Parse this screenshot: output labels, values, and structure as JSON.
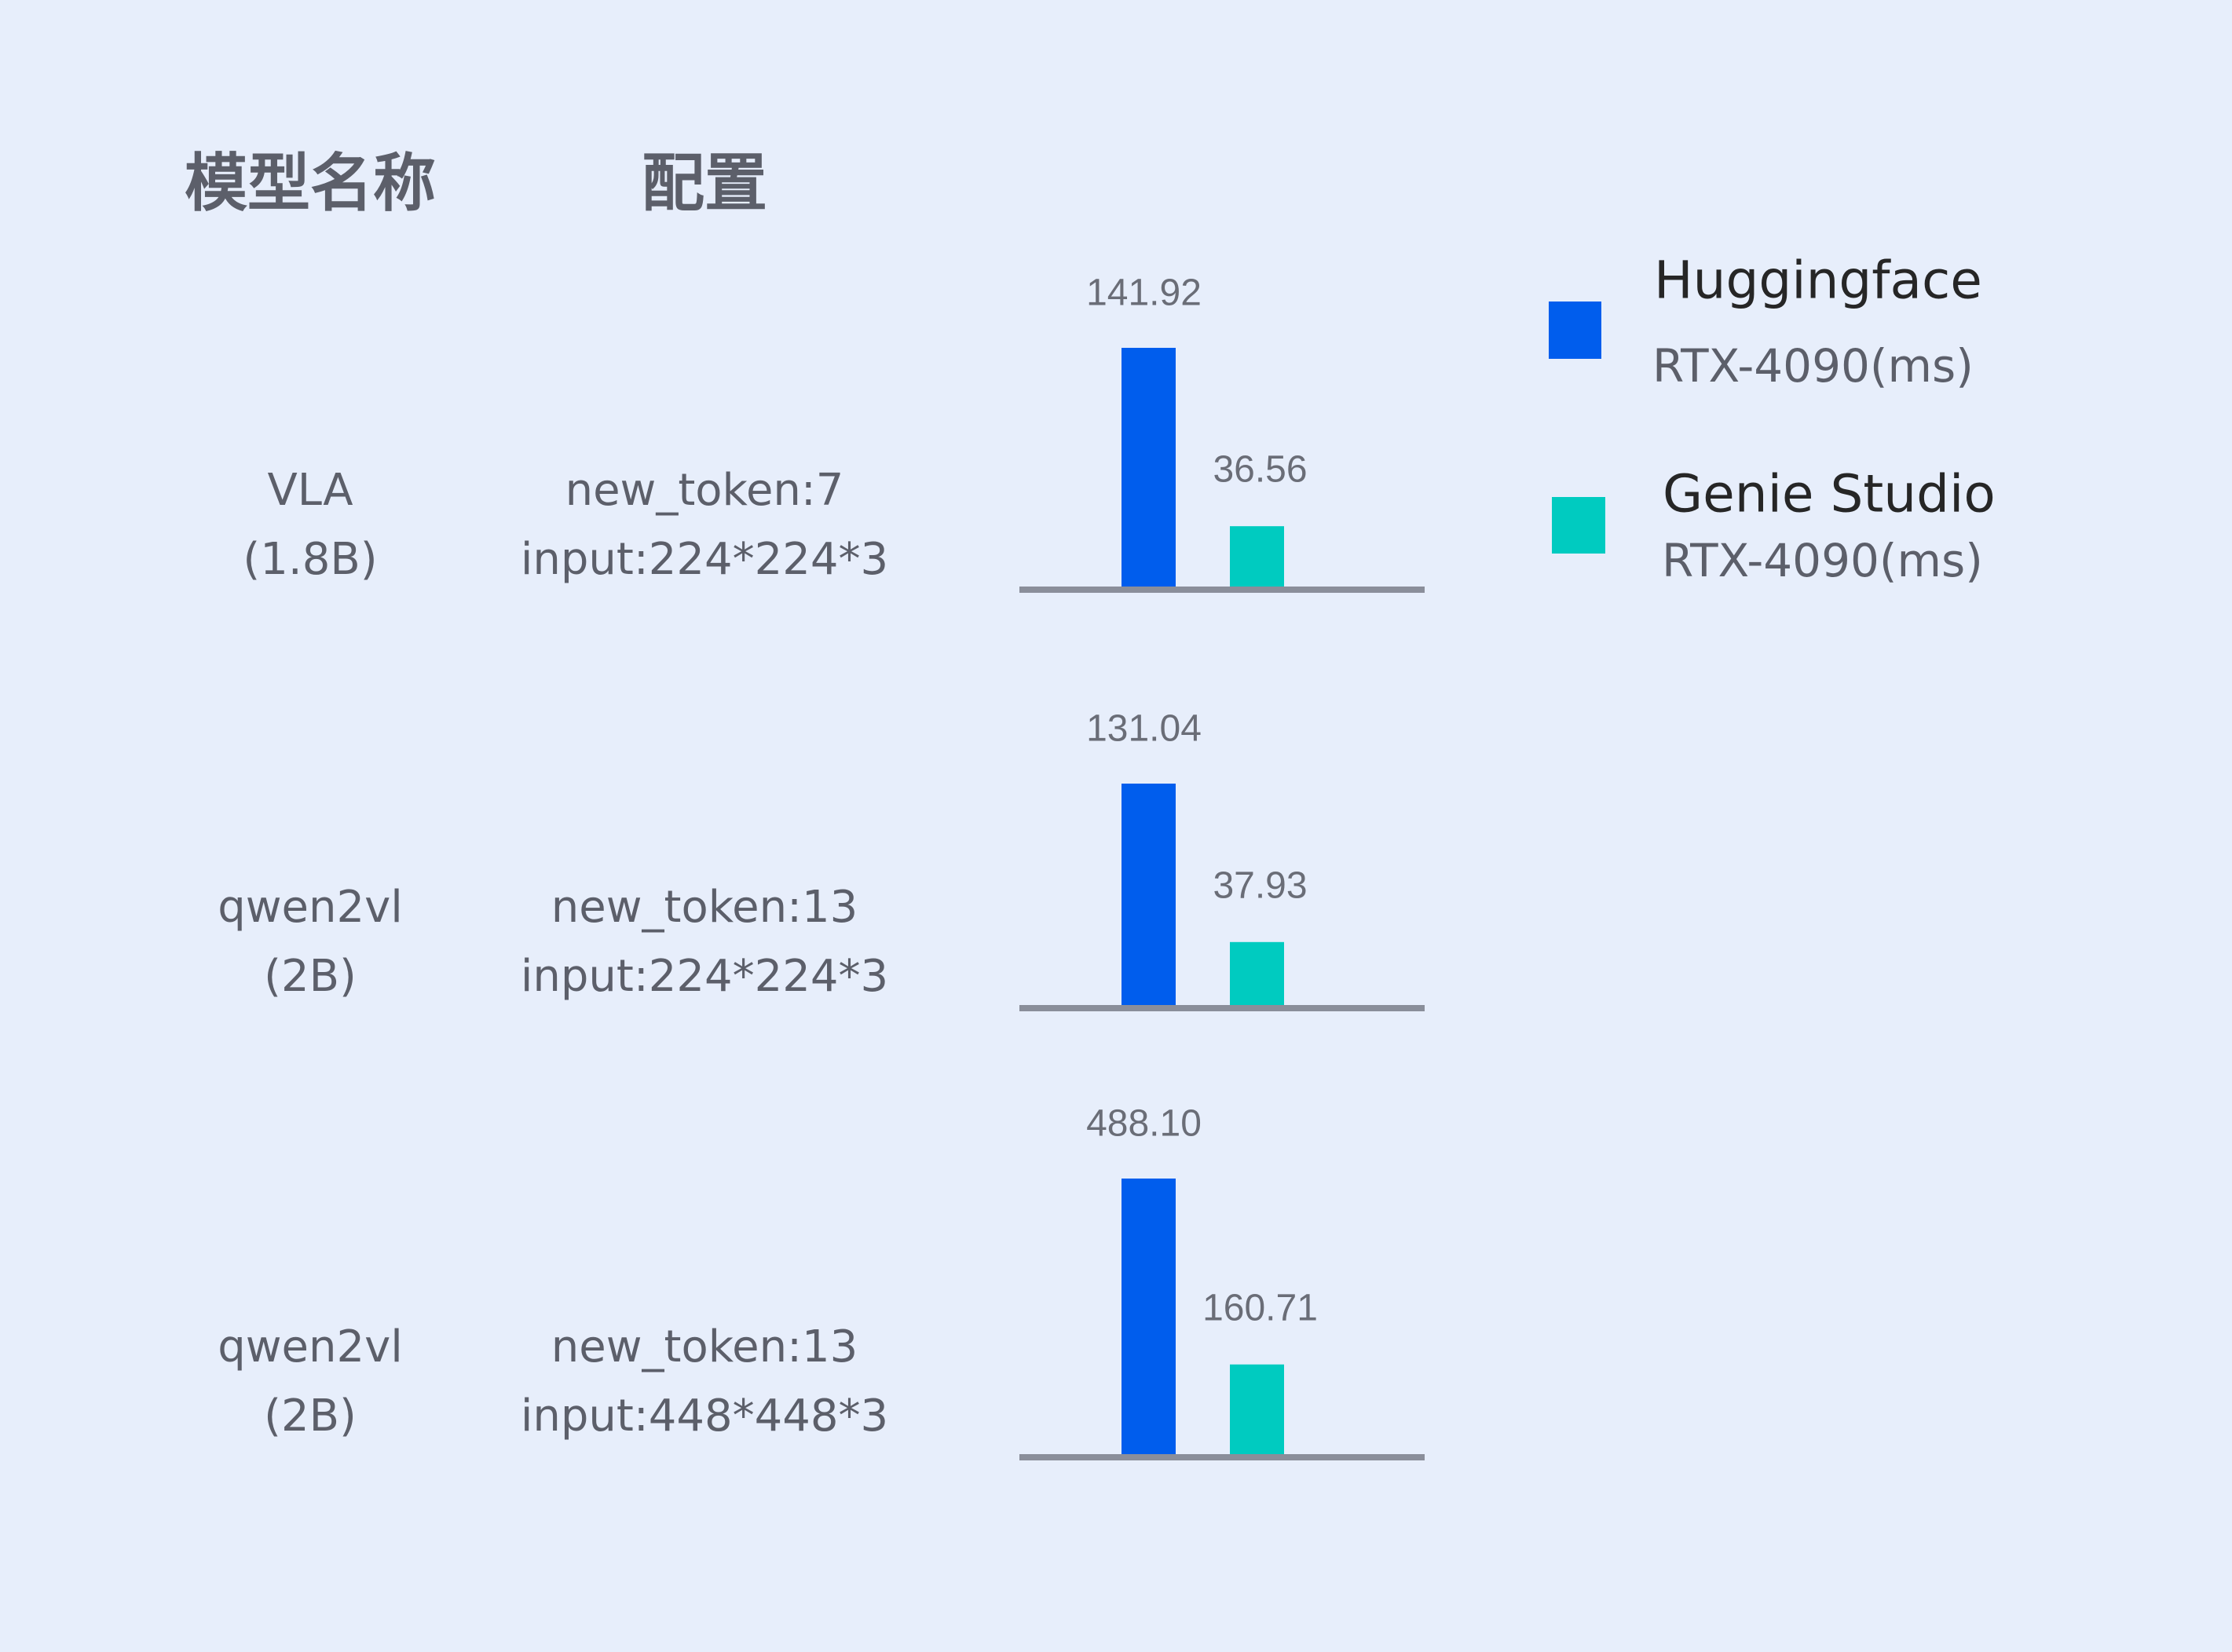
{
  "headers": {
    "model_name": "模型名称",
    "config": "配置"
  },
  "colors": {
    "background": "#e7eefb",
    "huggingface": "#005ded",
    "genie_studio": "#00cbc0",
    "axis": "#8a8e9a",
    "text": "#5c5f6a"
  },
  "legend": [
    {
      "title": "Huggingface",
      "subtitle": "RTX-4090(ms)",
      "color": "#005ded"
    },
    {
      "title": "Genie Studio",
      "subtitle": "RTX-4090(ms)",
      "color": "#00cbc0"
    }
  ],
  "rows": [
    {
      "model": "VLA",
      "size": "(1.8B)",
      "config_line1": "new_token:7",
      "config_line2": "input:224*224*3"
    },
    {
      "model": "qwen2vl",
      "size": "(2B)",
      "config_line1": "new_token:13",
      "config_line2": "input:224*224*3"
    },
    {
      "model": "qwen2vl",
      "size": "(2B)",
      "config_line1": "new_token:13",
      "config_line2": "input:448*448*3"
    }
  ],
  "chart_data": {
    "type": "bar",
    "categories": [
      "VLA (1.8B) new_token:7 input:224*224*3",
      "qwen2vl (2B) new_token:13 input:224*224*3",
      "qwen2vl (2B) new_token:13 input:448*448*3"
    ],
    "series": [
      {
        "name": "Huggingface RTX-4090(ms)",
        "values": [
          141.92,
          131.04,
          488.1
        ],
        "labels": [
          "141.92",
          "131.04",
          "488.10"
        ]
      },
      {
        "name": "Genie Studio RTX-4090(ms)",
        "values": [
          36.56,
          37.93,
          160.71
        ],
        "labels": [
          "36.56",
          "37.93",
          "160.71"
        ]
      }
    ],
    "xlabel": "",
    "ylabel": "",
    "grid": false,
    "legend_position": "right"
  }
}
